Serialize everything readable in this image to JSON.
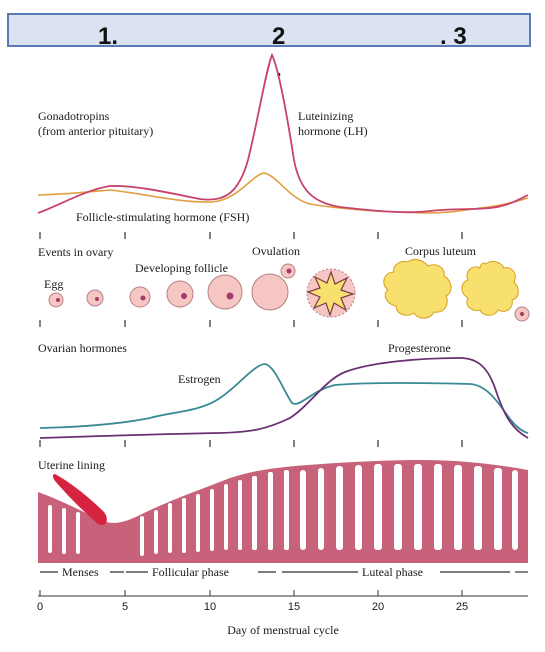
{
  "header": {
    "markers": [
      "1.",
      "2",
      ". 3"
    ],
    "marker_dot": "."
  },
  "panels": {
    "gonadotropins": {
      "title_line1": "Gonadotropins",
      "title_line2": "(from anterior pituitary)",
      "lh_line1": "Luteinizing",
      "lh_line2": "hormone (LH)",
      "fsh": "Follicle-stimulating hormone (FSH)"
    },
    "ovary": {
      "title": "Events in ovary",
      "egg": "Egg",
      "developing": "Developing follicle",
      "ovulation": "Ovulation",
      "corpus": "Corpus luteum"
    },
    "ovarian_hormones": {
      "title": "Ovarian hormones",
      "estrogen": "Estrogen",
      "progesterone": "Progesterone"
    },
    "uterine": {
      "title": "Uterine lining"
    }
  },
  "phases": [
    "Menses",
    "Follicular phase",
    "Luteal phase"
  ],
  "axis": {
    "ticks": [
      "0",
      "5",
      "10",
      "15",
      "20",
      "25"
    ],
    "title": "Day of menstrual cycle"
  },
  "colors": {
    "header_fill": "#dbe3f3",
    "header_stroke": "#5b7bb8",
    "lh": "#c8426b",
    "fsh": "#e0a040",
    "estrogen": "#3a8a96",
    "progesterone": "#6a2f72",
    "follicle_fill": "#f6c7c2",
    "follicle_stroke": "#b87f80",
    "corpus_fill": "#f7e06e",
    "corpus_stroke": "#d8a020",
    "lining": "#c7627a",
    "lining_dark": "#d62440",
    "tick_line": "#333333"
  }
}
